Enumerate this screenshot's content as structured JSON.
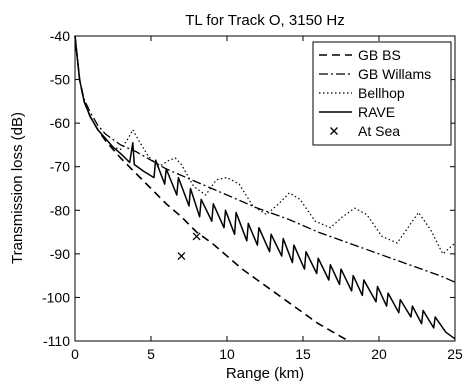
{
  "chart_data": {
    "type": "line",
    "title": "TL for Track O, 3150 Hz",
    "xlabel": "Range (km)",
    "ylabel": "Transmission loss (dB)",
    "xlim": [
      0,
      25
    ],
    "ylim": [
      -110,
      -40
    ],
    "x_ticks": [
      0,
      5,
      10,
      15,
      20,
      25
    ],
    "y_ticks": [
      -40,
      -50,
      -60,
      -70,
      -80,
      -90,
      -100,
      -110
    ],
    "grid": false,
    "legend": "top-right",
    "series": [
      {
        "name": "GB BS",
        "style": "dashed",
        "x": [
          0.0,
          0.3,
          0.6,
          1.0,
          1.5,
          2.0,
          2.5,
          3.0,
          4.0,
          5.0,
          6.0,
          7.0,
          8.0,
          9.0,
          10.0,
          11.0,
          12.0,
          13.0,
          14.0,
          15.0,
          16.0,
          17.0,
          18.0
        ],
        "y": [
          -40,
          -50,
          -55,
          -58.5,
          -61.5,
          -64,
          -66,
          -68,
          -71.5,
          -75,
          -78.5,
          -81.5,
          -85,
          -87.5,
          -90.5,
          -93.5,
          -96,
          -98.5,
          -101,
          -103.5,
          -106,
          -108,
          -110
        ]
      },
      {
        "name": "GB Willams",
        "style": "dash-dot",
        "x": [
          0.0,
          0.3,
          0.6,
          1.0,
          1.5,
          2.0,
          3.0,
          4.0,
          5.0,
          6.0,
          8.0,
          10.0,
          12.0,
          14.0,
          16.0,
          18.0,
          20.0,
          22.0,
          24.0,
          25.0
        ],
        "y": [
          -40,
          -50,
          -54.5,
          -57.5,
          -60.5,
          -62.5,
          -65,
          -66.5,
          -68.5,
          -70.5,
          -73.5,
          -76.5,
          -79.5,
          -82,
          -85,
          -87.5,
          -90,
          -92.5,
          -95,
          -96.5
        ]
      },
      {
        "name": "Bellhop",
        "style": "dotted",
        "x": [
          0.0,
          0.3,
          0.6,
          1.0,
          1.5,
          2.0,
          2.5,
          3.0,
          3.5,
          3.8,
          4.2,
          4.8,
          5.5,
          6.2,
          6.6,
          7.0,
          7.8,
          8.6,
          9.3,
          10.0,
          10.8,
          11.7,
          12.6,
          13.4,
          14.1,
          14.8,
          15.8,
          16.8,
          17.6,
          18.4,
          19.2,
          20.2,
          21.2,
          21.9,
          22.6,
          23.4,
          24.2,
          25.0
        ],
        "y": [
          -40,
          -50,
          -55,
          -58.5,
          -61.5,
          -63.5,
          -65.5,
          -66,
          -63.5,
          -61.5,
          -64,
          -67.5,
          -70,
          -68.5,
          -68,
          -69.5,
          -74.5,
          -76.5,
          -73,
          -72.5,
          -74,
          -79,
          -81,
          -78.5,
          -76,
          -77.5,
          -82.5,
          -84,
          -81.5,
          -79.5,
          -81,
          -86,
          -87.5,
          -84,
          -80.5,
          -84.5,
          -90,
          -87.5
        ]
      },
      {
        "name": "RAVE",
        "style": "solid",
        "x": [
          0.0,
          0.3,
          0.6,
          1.0,
          1.5,
          2.0,
          2.5,
          3.0,
          3.6,
          3.8,
          3.9,
          4.5,
          5.2,
          5.3,
          5.9,
          6.0,
          6.7,
          6.8,
          7.5,
          7.6,
          8.2,
          8.3,
          9.0,
          9.1,
          9.8,
          9.9,
          10.5,
          10.6,
          11.3,
          11.4,
          12.0,
          12.1,
          12.8,
          12.9,
          13.6,
          13.7,
          14.3,
          14.4,
          15.1,
          15.2,
          15.9,
          16.0,
          16.7,
          16.8,
          17.4,
          17.5,
          18.2,
          18.3,
          18.9,
          19.0,
          19.8,
          19.9,
          20.5,
          20.6,
          21.3,
          21.4,
          22.1,
          22.2,
          22.8,
          22.9,
          23.6,
          23.7,
          24.4,
          25.0
        ],
        "y": [
          -40,
          -50,
          -55,
          -58.5,
          -61.5,
          -63.5,
          -65.5,
          -67,
          -69,
          -64.5,
          -69.5,
          -71,
          -72.5,
          -68.5,
          -74,
          -70.5,
          -76.5,
          -72.5,
          -79,
          -75,
          -81.5,
          -77.5,
          -82.5,
          -78.5,
          -84,
          -80,
          -85.5,
          -80.5,
          -87,
          -83,
          -88,
          -84,
          -89.5,
          -85.5,
          -90.5,
          -86.5,
          -92,
          -88,
          -93.5,
          -89.5,
          -94.5,
          -91,
          -96,
          -92.5,
          -97,
          -93.5,
          -98.5,
          -95,
          -99.5,
          -96,
          -101,
          -97.5,
          -102,
          -99,
          -103.5,
          -100.5,
          -104.5,
          -102,
          -106,
          -103,
          -107,
          -104.5,
          -108,
          -109.5
        ]
      },
      {
        "name": "At Sea",
        "style": "markers-x",
        "x": [
          7.0,
          8.0
        ],
        "y": [
          -90.5,
          -86
        ]
      }
    ]
  }
}
